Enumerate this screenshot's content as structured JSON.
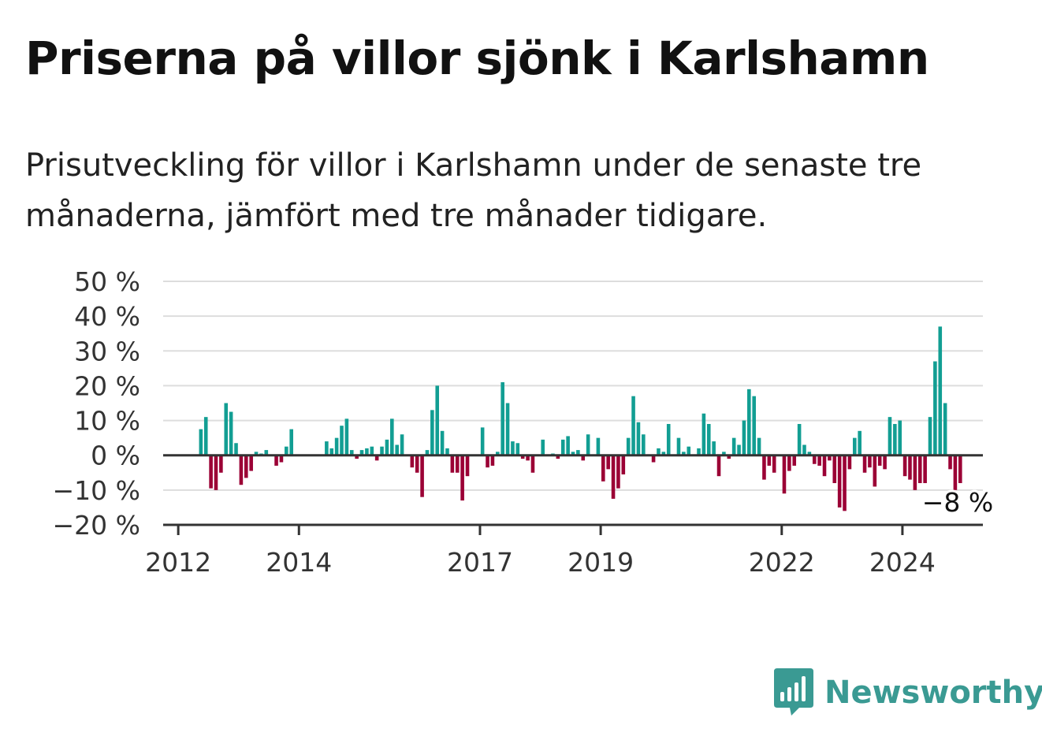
{
  "header": {
    "title": "Priserna på villor sjönk i Karlshamn",
    "subtitle": "Prisutveckling för villor i Karlshamn under de senaste tre månaderna, jämfört med tre månader tidigare."
  },
  "brand": {
    "name": "Newsworthy",
    "color": "#3a9a93",
    "icon": "bar-chart-speech-bubble-icon"
  },
  "colors": {
    "positive": "#129e93",
    "negative": "#9b0035",
    "grid": "#dddddd",
    "axis": "#333333"
  },
  "chart_data": {
    "type": "bar",
    "title": "Priserna på villor sjönk i Karlshamn",
    "subtitle": "Prisutveckling för villor i Karlshamn under de senaste tre månaderna, jämfört med tre månader tidigare.",
    "xlabel": "",
    "ylabel": "",
    "ylim": [
      -20,
      50
    ],
    "y_ticks": [
      50,
      40,
      30,
      20,
      10,
      0,
      -10,
      -20
    ],
    "y_tick_labels": [
      "50 %",
      "40 %",
      "30 %",
      "20 %",
      "10 %",
      "0 %",
      "−10 %",
      "−20 %"
    ],
    "x_ticks": [
      "2012-01",
      "2014-01",
      "2017-01",
      "2019-01",
      "2022-01",
      "2024-01"
    ],
    "x_tick_labels": [
      "2012",
      "2014",
      "2017",
      "2019",
      "2022",
      "2024"
    ],
    "x_range": [
      "2011-10",
      "2025-05"
    ],
    "grid": true,
    "annotation": {
      "x": "2024-12",
      "value": -8,
      "text": "−8 %"
    },
    "x": [
      "2012-05",
      "2012-06",
      "2012-07",
      "2012-08",
      "2012-09",
      "2012-10",
      "2012-11",
      "2012-12",
      "2013-01",
      "2013-02",
      "2013-03",
      "2013-04",
      "2013-05",
      "2013-06",
      "2013-07",
      "2013-08",
      "2013-09",
      "2013-10",
      "2013-11",
      "2013-12",
      "2014-01",
      "2014-02",
      "2014-03",
      "2014-04",
      "2014-05",
      "2014-06",
      "2014-07",
      "2014-08",
      "2014-09",
      "2014-10",
      "2014-11",
      "2014-12",
      "2015-01",
      "2015-02",
      "2015-03",
      "2015-04",
      "2015-05",
      "2015-06",
      "2015-07",
      "2015-08",
      "2015-09",
      "2015-10",
      "2015-11",
      "2015-12",
      "2016-01",
      "2016-02",
      "2016-03",
      "2016-04",
      "2016-05",
      "2016-06",
      "2016-07",
      "2016-08",
      "2016-09",
      "2016-10",
      "2016-11",
      "2016-12",
      "2017-01",
      "2017-02",
      "2017-03",
      "2017-04",
      "2017-05",
      "2017-06",
      "2017-07",
      "2017-08",
      "2017-09",
      "2017-10",
      "2017-11",
      "2017-12",
      "2018-01",
      "2018-02",
      "2018-03",
      "2018-04",
      "2018-05",
      "2018-06",
      "2018-07",
      "2018-08",
      "2018-09",
      "2018-10",
      "2018-11",
      "2018-12",
      "2019-01",
      "2019-02",
      "2019-03",
      "2019-04",
      "2019-05",
      "2019-06",
      "2019-07",
      "2019-08",
      "2019-09",
      "2019-10",
      "2019-11",
      "2019-12",
      "2020-01",
      "2020-02",
      "2020-03",
      "2020-04",
      "2020-05",
      "2020-06",
      "2020-07",
      "2020-08",
      "2020-09",
      "2020-10",
      "2020-11",
      "2020-12",
      "2021-01",
      "2021-02",
      "2021-03",
      "2021-04",
      "2021-05",
      "2021-06",
      "2021-07",
      "2021-08",
      "2021-09",
      "2021-10",
      "2021-11",
      "2021-12",
      "2022-01",
      "2022-02",
      "2022-03",
      "2022-04",
      "2022-05",
      "2022-06",
      "2022-07",
      "2022-08",
      "2022-09",
      "2022-10",
      "2022-11",
      "2022-12",
      "2023-01",
      "2023-02",
      "2023-03",
      "2023-04",
      "2023-05",
      "2023-06",
      "2023-07",
      "2023-08",
      "2023-09",
      "2023-10",
      "2023-11",
      "2023-12",
      "2024-01",
      "2024-02",
      "2024-03",
      "2024-04",
      "2024-05",
      "2024-06",
      "2024-07",
      "2024-08",
      "2024-09",
      "2024-10",
      "2024-11",
      "2024-12"
    ],
    "values": [
      7.5,
      11,
      -9.5,
      -10,
      -5,
      15,
      12.5,
      3.5,
      -8.5,
      -6.5,
      -4.5,
      1,
      0.5,
      1.5,
      0,
      -3,
      -2,
      2.5,
      7.5,
      0,
      0,
      0,
      0,
      0,
      0,
      4,
      2,
      5,
      8.5,
      10.5,
      1.5,
      -1,
      1.5,
      2,
      2.5,
      -1.5,
      2.5,
      4.5,
      10.5,
      3,
      6,
      0,
      -3.5,
      -5,
      -12,
      1.5,
      13,
      20,
      7,
      2,
      -5,
      -5,
      -13,
      -6,
      0,
      0,
      8,
      -3.5,
      -3,
      1,
      21,
      15,
      4,
      3.5,
      -1,
      -1.5,
      -5,
      0,
      4.5,
      0,
      0.5,
      -1,
      4.5,
      5.5,
      1,
      1.5,
      -1.5,
      6,
      0,
      5,
      -7.5,
      -4,
      -12.5,
      -9.5,
      -5.5,
      5,
      17,
      9.5,
      6,
      0,
      -2,
      2,
      1,
      9,
      0,
      5,
      1,
      2.5,
      0,
      2,
      12,
      9,
      4,
      -6,
      1,
      -1,
      5,
      3,
      10,
      19,
      17,
      5,
      -7,
      -3,
      -5,
      0,
      -11,
      -4.5,
      -3,
      9,
      3,
      1,
      -2.5,
      -3,
      -6,
      -1.5,
      -8,
      -15,
      -16,
      -4,
      5,
      7,
      -5,
      -3.5,
      -9,
      -3,
      -4,
      11,
      9,
      10,
      -6,
      -7,
      -10,
      -8,
      -8,
      11,
      27,
      37,
      15,
      -4,
      -10,
      -8
    ]
  }
}
